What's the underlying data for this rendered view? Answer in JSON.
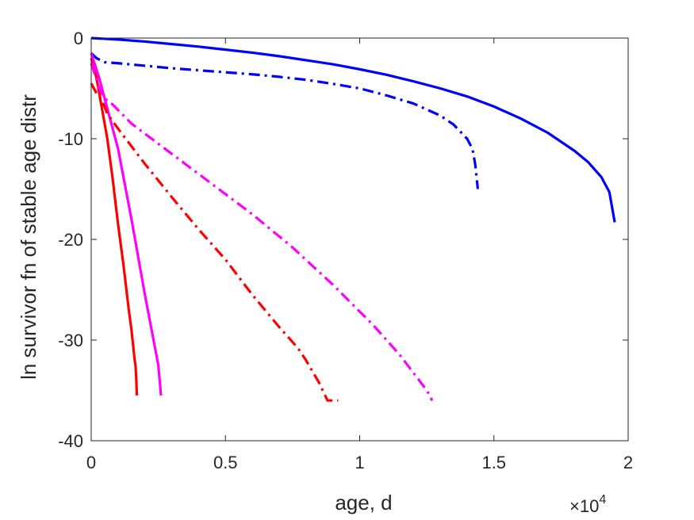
{
  "chart_data": {
    "type": "line",
    "title": "",
    "xlabel": "age, d",
    "ylabel": "ln survivor fn of stable age distr",
    "x_exponent_label": "×10",
    "x_exponent_power": "4",
    "xlim": [
      0,
      2
    ],
    "ylim": [
      -40,
      0
    ],
    "xticks": [
      "0",
      "0.5",
      "1",
      "1.5",
      "2"
    ],
    "yticks": [
      "0",
      "-10",
      "-20",
      "-30",
      "-40"
    ],
    "grid": false,
    "legend": "none",
    "series": [
      {
        "color": "#0000ff",
        "style": "solid",
        "x": [
          0,
          0.1,
          0.2,
          0.3,
          0.4,
          0.5,
          0.6,
          0.7,
          0.8,
          0.9,
          1.0,
          1.1,
          1.2,
          1.3,
          1.4,
          1.5,
          1.6,
          1.7,
          1.8,
          1.85,
          1.9,
          1.93,
          1.95
        ],
        "y": [
          0,
          -0.15,
          -0.35,
          -0.6,
          -0.85,
          -1.15,
          -1.45,
          -1.8,
          -2.2,
          -2.6,
          -3.1,
          -3.65,
          -4.3,
          -5.0,
          -5.8,
          -6.8,
          -8.0,
          -9.4,
          -11.2,
          -12.3,
          -13.8,
          -15.3,
          -18.3
        ]
      },
      {
        "color": "#0000ff",
        "style": "dashdot",
        "x": [
          0,
          0.02,
          0.05,
          0.1,
          0.2,
          0.3,
          0.4,
          0.5,
          0.6,
          0.7,
          0.8,
          0.9,
          1.0,
          1.1,
          1.2,
          1.3,
          1.35,
          1.4,
          1.42,
          1.43,
          1.44
        ],
        "y": [
          -1.5,
          -2.0,
          -2.4,
          -2.5,
          -2.75,
          -3.0,
          -3.2,
          -3.4,
          -3.6,
          -3.85,
          -4.15,
          -4.55,
          -5.0,
          -5.7,
          -6.5,
          -7.7,
          -8.6,
          -10.0,
          -11.0,
          -12.5,
          -15.0
        ]
      },
      {
        "color": "#ff0000",
        "style": "solid",
        "x": [
          0,
          0.02,
          0.04,
          0.06,
          0.08,
          0.1,
          0.12,
          0.14,
          0.15,
          0.16,
          0.163,
          0.165,
          0.168,
          0.17
        ],
        "y": [
          -2.0,
          -4.0,
          -7.0,
          -10.0,
          -14.0,
          -18.5,
          -22.5,
          -27.0,
          -29.0,
          -31.5,
          -32.2,
          -32.5,
          -34.0,
          -35.5
        ]
      },
      {
        "color": "#ff00ff",
        "style": "solid",
        "x": [
          0,
          0.03,
          0.06,
          0.1,
          0.15,
          0.2,
          0.25,
          0.26
        ],
        "y": [
          -1.5,
          -4.0,
          -7.0,
          -11.0,
          -18.0,
          -25.5,
          -32.5,
          -35.5
        ]
      },
      {
        "color": "#ff0000",
        "style": "dashdot",
        "x": [
          0,
          0.02,
          0.04,
          0.06,
          0.1,
          0.2,
          0.3,
          0.4,
          0.5,
          0.6,
          0.7,
          0.75,
          0.77,
          0.8,
          0.85,
          0.88,
          0.9,
          0.92
        ],
        "y": [
          -4.5,
          -5.5,
          -6.2,
          -7.5,
          -9.0,
          -12.5,
          -15.8,
          -19.0,
          -22.0,
          -25.5,
          -28.7,
          -30.2,
          -30.8,
          -32.0,
          -34.3,
          -36.0,
          -36.0,
          -36.0
        ]
      },
      {
        "color": "#ff00ff",
        "style": "dashdot",
        "x": [
          0,
          0.03,
          0.05,
          0.08,
          0.15,
          0.3,
          0.45,
          0.6,
          0.75,
          0.9,
          1.05,
          1.15,
          1.25,
          1.27
        ],
        "y": [
          -2.5,
          -5.0,
          -6.0,
          -6.6,
          -8.5,
          -11.5,
          -14.5,
          -17.5,
          -20.8,
          -24.5,
          -28.5,
          -31.5,
          -35.0,
          -36.0
        ]
      }
    ]
  }
}
